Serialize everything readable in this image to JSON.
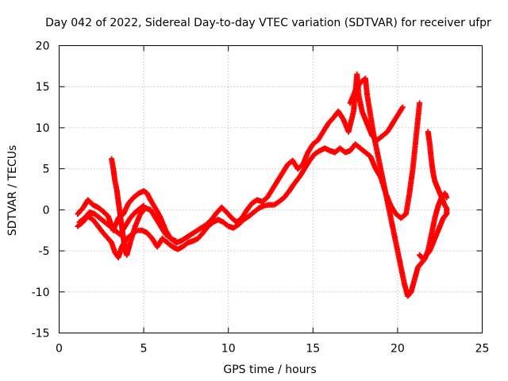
{
  "chart_data": {
    "type": "scatter",
    "title": "Day 042 of 2022, Sidereal Day-to-day VTEC variation (SDTVAR) for receiver ufpr",
    "xlabel": "GPS time / hours",
    "ylabel": "SDTVAR / TECUs",
    "xlim": [
      0,
      25
    ],
    "ylim": [
      -15,
      20
    ],
    "x_ticks": [
      0,
      5,
      10,
      15,
      20,
      25
    ],
    "y_ticks": [
      -15,
      -10,
      -5,
      0,
      5,
      10,
      15,
      20
    ],
    "x_tick_labels": [
      "0",
      "5",
      "10",
      "15",
      "20",
      "25"
    ],
    "y_tick_labels": [
      "-15",
      "-10",
      "-5",
      "0",
      "5",
      "10",
      "15",
      "20"
    ],
    "grid": true,
    "marker": "+",
    "color": "#ff0000",
    "series": [
      {
        "name": "track-1",
        "points": [
          [
            1.1,
            -0.5
          ],
          [
            1.4,
            0.2
          ],
          [
            1.7,
            1.2
          ],
          [
            2.0,
            0.6
          ],
          [
            2.3,
            0.3
          ],
          [
            2.6,
            -0.2
          ],
          [
            2.9,
            -0.8
          ],
          [
            3.2,
            -2.5
          ],
          [
            3.5,
            -1.0
          ],
          [
            3.8,
            -0.5
          ],
          [
            4.1,
            0.8
          ],
          [
            4.4,
            1.5
          ],
          [
            4.7,
            2.0
          ],
          [
            5.0,
            2.3
          ],
          [
            5.2,
            2.0
          ],
          [
            5.4,
            1.2
          ],
          [
            5.6,
            0.5
          ],
          [
            5.8,
            -0.2
          ],
          [
            6.0,
            -1.0
          ],
          [
            6.3,
            -2.5
          ],
          [
            6.6,
            -3.5
          ],
          [
            6.9,
            -4.0
          ],
          [
            7.2,
            -3.8
          ],
          [
            7.5,
            -3.4
          ],
          [
            7.8,
            -3.0
          ],
          [
            8.1,
            -2.6
          ],
          [
            8.4,
            -2.2
          ],
          [
            8.7,
            -1.8
          ],
          [
            9.0,
            -1.2
          ],
          [
            9.3,
            -0.4
          ],
          [
            9.6,
            0.3
          ],
          [
            9.9,
            -0.3
          ],
          [
            10.2,
            -1.0
          ],
          [
            10.5,
            -1.5
          ],
          [
            10.8,
            -1.0
          ],
          [
            11.1,
            0.0
          ],
          [
            11.4,
            0.8
          ],
          [
            11.7,
            1.2
          ],
          [
            12.0,
            1.0
          ],
          [
            12.3,
            1.5
          ],
          [
            12.6,
            2.5
          ],
          [
            12.9,
            3.5
          ],
          [
            13.2,
            4.5
          ],
          [
            13.5,
            5.5
          ],
          [
            13.8,
            6.0
          ],
          [
            14.1,
            5.0
          ],
          [
            14.4,
            5.5
          ],
          [
            14.7,
            7.0
          ],
          [
            15.0,
            8.0
          ],
          [
            15.3,
            8.5
          ],
          [
            15.6,
            9.5
          ],
          [
            15.9,
            10.5
          ],
          [
            16.2,
            11.2
          ],
          [
            16.5,
            12.0
          ],
          [
            16.8,
            11.0
          ],
          [
            17.1,
            9.5
          ],
          [
            17.4,
            12.0
          ],
          [
            17.6,
            16.5
          ],
          [
            17.7,
            14.0
          ],
          [
            17.9,
            12.0
          ],
          [
            18.1,
            11.0
          ],
          [
            18.3,
            10.0
          ],
          [
            18.5,
            9.0
          ],
          [
            18.8,
            8.5
          ],
          [
            19.1,
            9.0
          ],
          [
            19.4,
            9.5
          ],
          [
            19.7,
            10.5
          ],
          [
            20.0,
            11.5
          ],
          [
            20.3,
            12.5
          ]
        ]
      },
      {
        "name": "track-2",
        "points": [
          [
            1.1,
            -2.0
          ],
          [
            1.4,
            -1.5
          ],
          [
            1.7,
            -0.8
          ],
          [
            2.0,
            -1.2
          ],
          [
            2.3,
            -2.0
          ],
          [
            2.6,
            -2.8
          ],
          [
            2.9,
            -3.5
          ],
          [
            3.1,
            -4.0
          ],
          [
            3.3,
            -5.2
          ],
          [
            3.5,
            -5.8
          ],
          [
            3.7,
            -4.5
          ],
          [
            4.0,
            -3.5
          ],
          [
            4.3,
            -3.0
          ],
          [
            4.6,
            -2.5
          ],
          [
            4.9,
            -2.5
          ],
          [
            5.2,
            -2.8
          ],
          [
            5.5,
            -3.5
          ],
          [
            5.8,
            -4.5
          ],
          [
            6.1,
            -3.5
          ],
          [
            6.4,
            -4.0
          ],
          [
            6.7,
            -4.5
          ],
          [
            7.0,
            -4.8
          ],
          [
            7.3,
            -4.5
          ],
          [
            7.6,
            -4.0
          ],
          [
            7.9,
            -3.8
          ],
          [
            8.2,
            -3.5
          ],
          [
            8.5,
            -2.8
          ],
          [
            8.8,
            -2.0
          ],
          [
            9.1,
            -1.5
          ],
          [
            9.4,
            -1.2
          ],
          [
            9.7,
            -1.5
          ],
          [
            10.0,
            -2.0
          ],
          [
            10.3,
            -2.2
          ],
          [
            10.6,
            -1.8
          ],
          [
            10.9,
            -1.2
          ],
          [
            11.2,
            -0.8
          ],
          [
            11.5,
            -0.3
          ],
          [
            11.8,
            0.2
          ],
          [
            12.1,
            0.5
          ],
          [
            12.4,
            0.6
          ],
          [
            12.7,
            0.6
          ],
          [
            13.0,
            1.0
          ],
          [
            13.3,
            1.5
          ],
          [
            13.6,
            2.3
          ],
          [
            13.9,
            3.2
          ],
          [
            14.2,
            4.0
          ],
          [
            14.5,
            5.0
          ],
          [
            14.8,
            6.0
          ],
          [
            15.1,
            6.8
          ],
          [
            15.4,
            7.2
          ],
          [
            15.7,
            7.5
          ],
          [
            16.0,
            7.2
          ],
          [
            16.3,
            7.0
          ],
          [
            16.6,
            7.5
          ],
          [
            16.9,
            7.0
          ],
          [
            17.2,
            7.2
          ],
          [
            17.5,
            8.0
          ],
          [
            17.8,
            7.5
          ],
          [
            18.1,
            7.0
          ],
          [
            18.4,
            6.5
          ],
          [
            18.7,
            5.0
          ],
          [
            19.0,
            4.0
          ],
          [
            19.3,
            2.0
          ],
          [
            19.6,
            0.5
          ],
          [
            19.9,
            -0.5
          ],
          [
            20.2,
            -1.0
          ],
          [
            20.5,
            -0.5
          ],
          [
            20.7,
            2.0
          ],
          [
            20.9,
            5.0
          ],
          [
            21.1,
            9.0
          ],
          [
            21.3,
            13.0
          ]
        ]
      },
      {
        "name": "track-3",
        "points": [
          [
            3.1,
            6.2
          ],
          [
            3.2,
            5.0
          ],
          [
            3.3,
            3.5
          ],
          [
            3.4,
            2.5
          ],
          [
            3.5,
            1.0
          ],
          [
            3.6,
            -0.5
          ],
          [
            3.7,
            -2.0
          ],
          [
            3.8,
            -3.5
          ],
          [
            3.9,
            -5.0
          ],
          [
            4.0,
            -5.5
          ],
          [
            4.2,
            -4.0
          ],
          [
            4.5,
            -2.0
          ],
          [
            4.8,
            -0.5
          ],
          [
            5.1,
            0.2
          ],
          [
            5.4,
            0.0
          ],
          [
            5.7,
            -1.0
          ],
          [
            6.0,
            -2.0
          ],
          [
            6.3,
            -3.0
          ],
          [
            6.6,
            -3.5
          ],
          [
            6.9,
            -3.8
          ]
        ]
      },
      {
        "name": "track-4",
        "points": [
          [
            17.2,
            13.0
          ],
          [
            17.5,
            14.5
          ],
          [
            17.8,
            15.5
          ],
          [
            18.1,
            16.0
          ],
          [
            18.2,
            14.0
          ],
          [
            18.4,
            11.5
          ],
          [
            18.6,
            9.0
          ],
          [
            18.8,
            7.0
          ],
          [
            19.0,
            5.0
          ],
          [
            19.2,
            3.0
          ],
          [
            19.4,
            1.0
          ],
          [
            19.6,
            -1.0
          ],
          [
            19.8,
            -3.0
          ],
          [
            20.0,
            -5.0
          ],
          [
            20.2,
            -7.0
          ],
          [
            20.4,
            -9.0
          ],
          [
            20.6,
            -10.5
          ],
          [
            20.8,
            -10.0
          ],
          [
            21.0,
            -8.5
          ],
          [
            21.2,
            -7.0
          ],
          [
            21.4,
            -6.5
          ],
          [
            21.6,
            -6.0
          ],
          [
            21.8,
            -5.0
          ],
          [
            22.0,
            -3.0
          ],
          [
            22.2,
            -1.0
          ],
          [
            22.4,
            0.5
          ],
          [
            22.6,
            1.5
          ],
          [
            22.8,
            2.0
          ],
          [
            22.9,
            1.5
          ]
        ]
      },
      {
        "name": "track-5",
        "points": [
          [
            21.8,
            9.5
          ],
          [
            21.9,
            8.0
          ],
          [
            22.0,
            6.0
          ],
          [
            22.1,
            4.5
          ],
          [
            22.2,
            3.5
          ],
          [
            22.4,
            2.5
          ],
          [
            22.6,
            1.5
          ],
          [
            22.8,
            0.5
          ],
          [
            22.9,
            0.2
          ],
          [
            22.9,
            -0.5
          ],
          [
            22.7,
            -1.0
          ],
          [
            22.5,
            -2.0
          ],
          [
            22.3,
            -3.0
          ],
          [
            22.1,
            -4.0
          ],
          [
            21.9,
            -5.0
          ],
          [
            21.7,
            -5.5
          ],
          [
            21.5,
            -6.0
          ],
          [
            21.3,
            -5.5
          ]
        ]
      },
      {
        "name": "track-6",
        "points": [
          [
            1.2,
            -1.5
          ],
          [
            1.5,
            -1.0
          ],
          [
            1.8,
            -0.3
          ],
          [
            2.1,
            -0.5
          ],
          [
            2.4,
            -1.0
          ],
          [
            2.7,
            -1.5
          ],
          [
            3.0,
            -2.0
          ],
          [
            3.3,
            -2.5
          ],
          [
            3.6,
            -3.0
          ],
          [
            3.9,
            -2.0
          ],
          [
            4.2,
            -1.0
          ],
          [
            4.5,
            -0.3
          ],
          [
            4.8,
            0.2
          ],
          [
            5.0,
            0.5
          ]
        ]
      }
    ]
  }
}
